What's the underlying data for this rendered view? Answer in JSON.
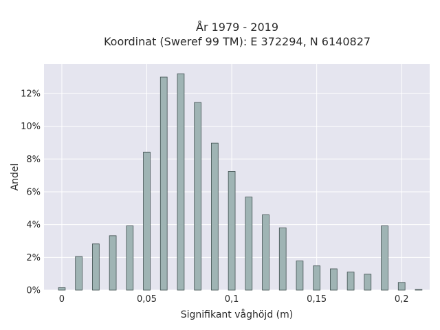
{
  "chart_data": {
    "type": "bar",
    "title": "År 1979 - 2019",
    "subtitle": "Koordinat (Sweref 99 TM): E 372294, N 6140827",
    "xlabel": "Signifikant våghöjd (m)",
    "ylabel": "Andel",
    "x_ticks": [
      {
        "value": 0,
        "label": "0"
      },
      {
        "value": 0.05,
        "label": "0,05"
      },
      {
        "value": 0.1,
        "label": "0,1"
      },
      {
        "value": 0.15,
        "label": "0,15"
      },
      {
        "value": 0.2,
        "label": "0,2"
      }
    ],
    "y_ticks": [
      {
        "value": 0,
        "label": "0%"
      },
      {
        "value": 2,
        "label": "2%"
      },
      {
        "value": 4,
        "label": "4%"
      },
      {
        "value": 6,
        "label": "6%"
      },
      {
        "value": 8,
        "label": "8%"
      },
      {
        "value": 10,
        "label": "10%"
      },
      {
        "value": 12,
        "label": "12%"
      }
    ],
    "xlim": [
      -0.0105,
      0.2165
    ],
    "ylim": [
      0,
      13.8
    ],
    "bar_width": 0.004,
    "grid": true,
    "colors": {
      "bar_fill": "#9fb4b4",
      "bar_stroke": "#3f4f4f",
      "plot_bg": "#e5e5ef",
      "grid": "#ffffff"
    },
    "x": [
      0.0,
      0.01,
      0.02,
      0.03,
      0.04,
      0.05,
      0.06,
      0.07,
      0.08,
      0.09,
      0.1,
      0.11,
      0.12,
      0.13,
      0.14,
      0.15,
      0.16,
      0.17,
      0.18,
      0.19,
      0.2,
      0.21
    ],
    "values": [
      0.15,
      2.05,
      2.82,
      3.32,
      3.92,
      8.42,
      13.0,
      13.2,
      11.45,
      8.97,
      7.24,
      5.68,
      4.6,
      3.8,
      1.78,
      1.48,
      1.3,
      1.1,
      0.97,
      3.92,
      0.47,
      0.04
    ]
  }
}
